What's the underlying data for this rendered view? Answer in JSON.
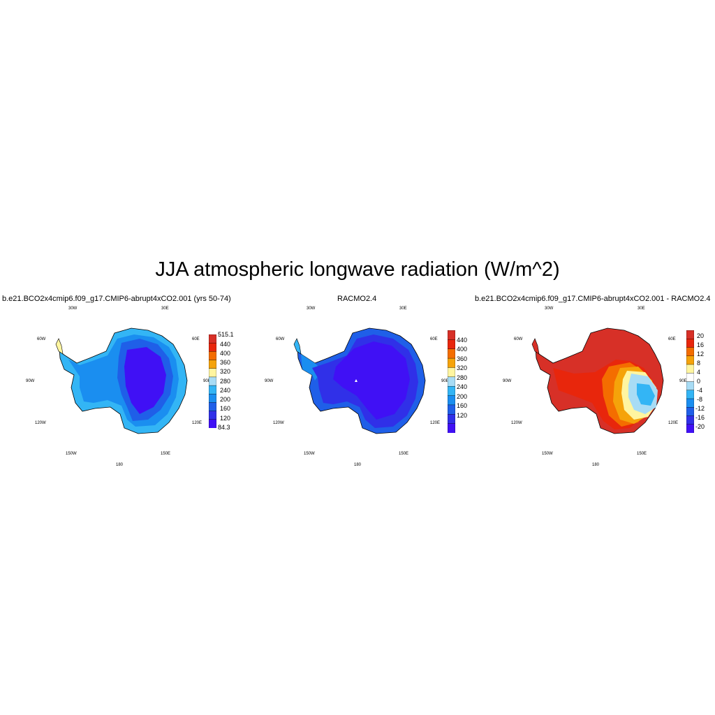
{
  "title": "JJA atmospheric longwave radiation (W/m^2)",
  "panels": [
    {
      "title": "b.e21.BCO2x4cmip6.f09_g17.CMIP6-abrupt4xCO2.001 (yrs 50-74)",
      "colorbar": {
        "labels": [
          "515.1",
          "440",
          "400",
          "360",
          "320",
          "280",
          "240",
          "200",
          "160",
          "120",
          "84.3"
        ],
        "colors": [
          "#d73027",
          "#e8260c",
          "#f46d00",
          "#f5a30a",
          "#fff5a0",
          "#a8dcf5",
          "#33b5f5",
          "#1a8ef0",
          "#1f5fe8",
          "#3030e8",
          "#4010f5"
        ]
      }
    },
    {
      "title": "RACMO2.4",
      "colorbar": {
        "labels": [
          "440",
          "400",
          "360",
          "320",
          "280",
          "240",
          "200",
          "160",
          "120"
        ],
        "colors": [
          "#d73027",
          "#e8260c",
          "#f46d00",
          "#f5a30a",
          "#fff5a0",
          "#a8dcf5",
          "#33b5f5",
          "#1a8ef0",
          "#1f5fe8",
          "#3030e8",
          "#4010f5"
        ]
      }
    },
    {
      "title": "b.e21.BCO2x4cmip6.f09_g17.CMIP6-abrupt4xCO2.001 - RACMO2.4",
      "colorbar": {
        "labels": [
          "20",
          "16",
          "12",
          "8",
          "4",
          "0",
          "-4",
          "-8",
          "-12",
          "-16",
          "-20"
        ],
        "colors": [
          "#d73027",
          "#e8260c",
          "#f46d00",
          "#f5a30a",
          "#fff5a0",
          "#ffffff",
          "#a8dcf5",
          "#33b5f5",
          "#1a8ef0",
          "#1f5fe8",
          "#3030e8",
          "#4010f5"
        ]
      }
    }
  ],
  "longitude_labels": [
    "30W",
    "30E",
    "60W",
    "60E",
    "90W",
    "90E",
    "120W",
    "120E",
    "150W",
    "150E",
    "180"
  ]
}
